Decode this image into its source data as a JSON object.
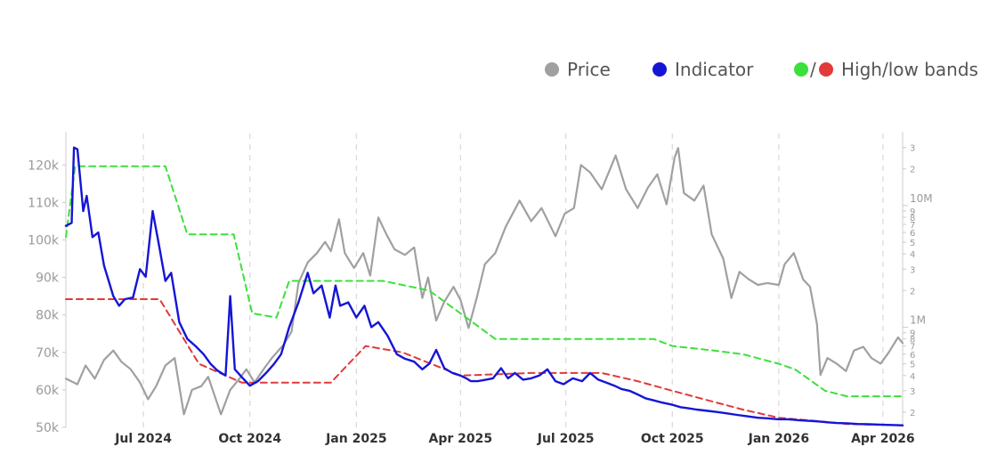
{
  "legend": {
    "price": "Price",
    "indicator": "Indicator",
    "bands_sep": "/",
    "bands": "High/low bands"
  },
  "colors": {
    "price": "#a0a0a0",
    "indicator": "#1515d6",
    "high_band": "#3ce03c",
    "low_band": "#e03a3a",
    "grid": "#d8d8d8",
    "axis": "#cccccc"
  },
  "chart_data": {
    "type": "line",
    "title": "",
    "xlabel": "",
    "ylabel": "",
    "grid": "vertical dashed",
    "legend_position": "top-right",
    "x_tick_labels": [
      "Jul 2024",
      "Oct 2024",
      "Jan 2025",
      "Apr 2025",
      "Jul 2025",
      "Oct 2025",
      "Jan 2026",
      "Apr 2026"
    ],
    "x_tick_dates": [
      "2024-07-01",
      "2024-10-01",
      "2025-01-01",
      "2025-04-01",
      "2025-07-01",
      "2025-10-01",
      "2026-01-01",
      "2026-04-01"
    ],
    "xlim": [
      "2024-04-25",
      "2026-04-18"
    ],
    "left_axis": {
      "ylim": [
        50000,
        126000
      ],
      "ticks": [
        50000,
        60000,
        70000,
        80000,
        90000,
        100000,
        110000,
        120000
      ],
      "tick_labels": [
        "50k",
        "60k",
        "70k",
        "80k",
        "90k",
        "100k",
        "110k",
        "120k"
      ]
    },
    "right_axis": {
      "scale": "log",
      "ylim": [
        150000,
        33000000
      ],
      "major_ticks": [
        1000000,
        10000000
      ],
      "major_labels": [
        "1M",
        "10M"
      ],
      "minor_ticks": [
        200000,
        300000,
        400000,
        500000,
        600000,
        700000,
        800000,
        900000,
        2000000,
        3000000,
        4000000,
        5000000,
        6000000,
        7000000,
        8000000,
        9000000,
        20000000,
        30000000
      ],
      "minor_labels": [
        "2",
        "3",
        "4",
        "5",
        "6",
        "7",
        "8",
        "9",
        "2",
        "3",
        "4",
        "5",
        "6",
        "7",
        "8",
        "9",
        "2",
        "3"
      ]
    },
    "series": [
      {
        "name": "Price",
        "axis": "left",
        "points": [
          [
            "2024-04-25",
            63000
          ],
          [
            "2024-05-05",
            61500
          ],
          [
            "2024-05-12",
            66500
          ],
          [
            "2024-05-20",
            63000
          ],
          [
            "2024-05-28",
            68000
          ],
          [
            "2024-06-05",
            70500
          ],
          [
            "2024-06-12",
            67500
          ],
          [
            "2024-06-20",
            65500
          ],
          [
            "2024-06-28",
            62000
          ],
          [
            "2024-07-05",
            57500
          ],
          [
            "2024-07-12",
            61000
          ],
          [
            "2024-07-20",
            66500
          ],
          [
            "2024-07-28",
            68500
          ],
          [
            "2024-08-05",
            53500
          ],
          [
            "2024-08-12",
            60000
          ],
          [
            "2024-08-20",
            61000
          ],
          [
            "2024-08-26",
            63500
          ],
          [
            "2024-09-06",
            53500
          ],
          [
            "2024-09-14",
            60000
          ],
          [
            "2024-09-22",
            63000
          ],
          [
            "2024-09-28",
            65500
          ],
          [
            "2024-10-05",
            62000
          ],
          [
            "2024-10-14",
            66000
          ],
          [
            "2024-10-20",
            68500
          ],
          [
            "2024-10-30",
            72000
          ],
          [
            "2024-11-06",
            75500
          ],
          [
            "2024-11-12",
            88500
          ],
          [
            "2024-11-20",
            94000
          ],
          [
            "2024-11-28",
            96500
          ],
          [
            "2024-12-05",
            99500
          ],
          [
            "2024-12-10",
            97000
          ],
          [
            "2024-12-17",
            105500
          ],
          [
            "2024-12-22",
            96500
          ],
          [
            "2024-12-30",
            92500
          ],
          [
            "2025-01-07",
            96500
          ],
          [
            "2025-01-13",
            90500
          ],
          [
            "2025-01-20",
            106000
          ],
          [
            "2025-01-27",
            101500
          ],
          [
            "2025-02-03",
            97500
          ],
          [
            "2025-02-12",
            96000
          ],
          [
            "2025-02-20",
            98000
          ],
          [
            "2025-02-27",
            84500
          ],
          [
            "2025-03-04",
            90000
          ],
          [
            "2025-03-11",
            78500
          ],
          [
            "2025-03-18",
            83500
          ],
          [
            "2025-03-26",
            87500
          ],
          [
            "2025-04-01",
            84000
          ],
          [
            "2025-04-08",
            76500
          ],
          [
            "2025-04-15",
            84500
          ],
          [
            "2025-04-22",
            93500
          ],
          [
            "2025-05-01",
            96500
          ],
          [
            "2025-05-10",
            103500
          ],
          [
            "2025-05-22",
            110500
          ],
          [
            "2025-06-01",
            105000
          ],
          [
            "2025-06-10",
            108500
          ],
          [
            "2025-06-22",
            101000
          ],
          [
            "2025-06-30",
            107000
          ],
          [
            "2025-07-08",
            108500
          ],
          [
            "2025-07-14",
            120000
          ],
          [
            "2025-07-22",
            118000
          ],
          [
            "2025-08-01",
            113500
          ],
          [
            "2025-08-13",
            122500
          ],
          [
            "2025-08-22",
            113500
          ],
          [
            "2025-09-01",
            108500
          ],
          [
            "2025-09-10",
            114000
          ],
          [
            "2025-09-18",
            117500
          ],
          [
            "2025-09-26",
            109500
          ],
          [
            "2025-10-03",
            122000
          ],
          [
            "2025-10-06",
            124500
          ],
          [
            "2025-10-11",
            112500
          ],
          [
            "2025-10-20",
            110500
          ],
          [
            "2025-10-28",
            114500
          ],
          [
            "2025-11-04",
            101500
          ],
          [
            "2025-11-14",
            95000
          ],
          [
            "2025-11-21",
            84500
          ],
          [
            "2025-11-28",
            91500
          ],
          [
            "2025-12-06",
            89500
          ],
          [
            "2025-12-14",
            88000
          ],
          [
            "2025-12-22",
            88500
          ],
          [
            "2026-01-01",
            88000
          ],
          [
            "2026-01-06",
            93500
          ],
          [
            "2026-01-14",
            96500
          ],
          [
            "2026-01-22",
            89500
          ],
          [
            "2026-01-28",
            87500
          ],
          [
            "2026-02-03",
            77500
          ],
          [
            "2026-02-06",
            64000
          ],
          [
            "2026-02-12",
            68500
          ],
          [
            "2026-02-20",
            67000
          ],
          [
            "2026-02-28",
            65000
          ],
          [
            "2026-03-07",
            70500
          ],
          [
            "2026-03-15",
            71500
          ],
          [
            "2026-03-22",
            68500
          ],
          [
            "2026-03-30",
            67000
          ],
          [
            "2026-04-06",
            70000
          ],
          [
            "2026-04-14",
            74000
          ],
          [
            "2026-04-18",
            72500
          ]
        ]
      },
      {
        "name": "Indicator",
        "axis": "right",
        "points": [
          [
            "2024-04-25",
            6800000
          ],
          [
            "2024-04-30",
            7200000
          ],
          [
            "2024-05-02",
            30000000
          ],
          [
            "2024-05-05",
            29000000
          ],
          [
            "2024-05-10",
            9000000
          ],
          [
            "2024-05-13",
            12000000
          ],
          [
            "2024-05-18",
            5500000
          ],
          [
            "2024-05-23",
            6000000
          ],
          [
            "2024-05-28",
            3200000
          ],
          [
            "2024-06-05",
            1800000
          ],
          [
            "2024-06-10",
            1500000
          ],
          [
            "2024-06-15",
            1700000
          ],
          [
            "2024-06-22",
            1750000
          ],
          [
            "2024-06-28",
            3000000
          ],
          [
            "2024-07-03",
            2600000
          ],
          [
            "2024-07-09",
            9000000
          ],
          [
            "2024-07-14",
            5000000
          ],
          [
            "2024-07-20",
            2400000
          ],
          [
            "2024-07-25",
            2800000
          ],
          [
            "2024-08-01",
            1100000
          ],
          [
            "2024-08-08",
            800000
          ],
          [
            "2024-08-15",
            700000
          ],
          [
            "2024-08-22",
            600000
          ],
          [
            "2024-08-28",
            500000
          ],
          [
            "2024-09-03",
            440000
          ],
          [
            "2024-09-10",
            400000
          ],
          [
            "2024-09-14",
            1800000
          ],
          [
            "2024-09-18",
            450000
          ],
          [
            "2024-09-25",
            380000
          ],
          [
            "2024-10-01",
            330000
          ],
          [
            "2024-10-08",
            360000
          ],
          [
            "2024-10-15",
            420000
          ],
          [
            "2024-10-22",
            500000
          ],
          [
            "2024-10-28",
            600000
          ],
          [
            "2024-11-04",
            1000000
          ],
          [
            "2024-11-12",
            1600000
          ],
          [
            "2024-11-20",
            2800000
          ],
          [
            "2024-11-25",
            1900000
          ],
          [
            "2024-12-02",
            2200000
          ],
          [
            "2024-12-09",
            1200000
          ],
          [
            "2024-12-14",
            2200000
          ],
          [
            "2024-12-18",
            1500000
          ],
          [
            "2024-12-25",
            1600000
          ],
          [
            "2025-01-01",
            1200000
          ],
          [
            "2025-01-08",
            1500000
          ],
          [
            "2025-01-14",
            1000000
          ],
          [
            "2025-01-20",
            1100000
          ],
          [
            "2025-01-28",
            850000
          ],
          [
            "2025-02-05",
            600000
          ],
          [
            "2025-02-12",
            550000
          ],
          [
            "2025-02-20",
            520000
          ],
          [
            "2025-02-27",
            450000
          ],
          [
            "2025-03-05",
            500000
          ],
          [
            "2025-03-11",
            650000
          ],
          [
            "2025-03-18",
            460000
          ],
          [
            "2025-03-25",
            420000
          ],
          [
            "2025-04-01",
            400000
          ],
          [
            "2025-04-06",
            380000
          ],
          [
            "2025-04-10",
            360000
          ],
          [
            "2025-04-16",
            360000
          ],
          [
            "2025-04-23",
            370000
          ],
          [
            "2025-04-29",
            380000
          ],
          [
            "2025-05-06",
            460000
          ],
          [
            "2025-05-12",
            380000
          ],
          [
            "2025-05-18",
            420000
          ],
          [
            "2025-05-25",
            370000
          ],
          [
            "2025-06-01",
            380000
          ],
          [
            "2025-06-08",
            400000
          ],
          [
            "2025-06-15",
            450000
          ],
          [
            "2025-06-22",
            360000
          ],
          [
            "2025-06-29",
            340000
          ],
          [
            "2025-07-07",
            380000
          ],
          [
            "2025-07-15",
            360000
          ],
          [
            "2025-07-22",
            420000
          ],
          [
            "2025-07-29",
            370000
          ],
          [
            "2025-08-05",
            350000
          ],
          [
            "2025-08-12",
            330000
          ],
          [
            "2025-08-18",
            310000
          ],
          [
            "2025-08-25",
            300000
          ],
          [
            "2025-09-01",
            280000
          ],
          [
            "2025-09-08",
            260000
          ],
          [
            "2025-09-15",
            250000
          ],
          [
            "2025-09-22",
            240000
          ],
          [
            "2025-10-01",
            230000
          ],
          [
            "2025-10-08",
            220000
          ],
          [
            "2025-10-15",
            215000
          ],
          [
            "2025-10-22",
            210000
          ],
          [
            "2025-11-01",
            205000
          ],
          [
            "2025-11-10",
            200000
          ],
          [
            "2025-11-18",
            195000
          ],
          [
            "2025-11-26",
            190000
          ],
          [
            "2025-12-05",
            185000
          ],
          [
            "2025-12-14",
            180000
          ],
          [
            "2025-12-22",
            178000
          ],
          [
            "2026-01-01",
            175000
          ],
          [
            "2026-01-09",
            175000
          ],
          [
            "2026-01-18",
            172000
          ],
          [
            "2026-01-26",
            170000
          ],
          [
            "2026-02-04",
            168000
          ],
          [
            "2026-02-12",
            165000
          ],
          [
            "2026-02-20",
            163000
          ],
          [
            "2026-03-01",
            162000
          ],
          [
            "2026-03-10",
            160000
          ],
          [
            "2026-03-20",
            159000
          ],
          [
            "2026-03-30",
            158000
          ],
          [
            "2026-04-08",
            157000
          ],
          [
            "2026-04-18",
            156000
          ]
        ]
      },
      {
        "name": "High",
        "axis": "right",
        "points": [
          [
            "2024-04-25",
            5500000
          ],
          [
            "2024-05-03",
            21000000
          ],
          [
            "2024-07-20",
            21000000
          ],
          [
            "2024-08-08",
            5800000
          ],
          [
            "2024-09-17",
            5800000
          ],
          [
            "2024-10-03",
            1300000
          ],
          [
            "2024-10-24",
            1200000
          ],
          [
            "2024-11-04",
            2400000
          ],
          [
            "2025-01-24",
            2400000
          ],
          [
            "2025-03-05",
            2000000
          ],
          [
            "2025-04-01",
            1300000
          ],
          [
            "2025-05-01",
            800000
          ],
          [
            "2025-09-15",
            800000
          ],
          [
            "2025-10-01",
            700000
          ],
          [
            "2025-11-01",
            650000
          ],
          [
            "2025-12-01",
            600000
          ],
          [
            "2026-01-01",
            500000
          ],
          [
            "2026-01-15",
            450000
          ],
          [
            "2026-02-10",
            300000
          ],
          [
            "2026-03-01",
            270000
          ],
          [
            "2026-04-18",
            270000
          ]
        ]
      },
      {
        "name": "Low",
        "axis": "right",
        "points": [
          [
            "2024-04-25",
            1700000
          ],
          [
            "2024-07-15",
            1700000
          ],
          [
            "2024-08-18",
            500000
          ],
          [
            "2024-09-24",
            350000
          ],
          [
            "2024-12-10",
            350000
          ],
          [
            "2025-01-09",
            700000
          ],
          [
            "2025-02-10",
            620000
          ],
          [
            "2025-04-01",
            400000
          ],
          [
            "2025-06-01",
            420000
          ],
          [
            "2025-08-01",
            420000
          ],
          [
            "2025-09-01",
            360000
          ],
          [
            "2025-10-01",
            300000
          ],
          [
            "2025-11-01",
            250000
          ],
          [
            "2025-12-01",
            210000
          ],
          [
            "2026-01-01",
            180000
          ],
          [
            "2026-02-01",
            170000
          ],
          [
            "2026-03-01",
            160000
          ],
          [
            "2026-04-18",
            156000
          ]
        ]
      }
    ]
  }
}
